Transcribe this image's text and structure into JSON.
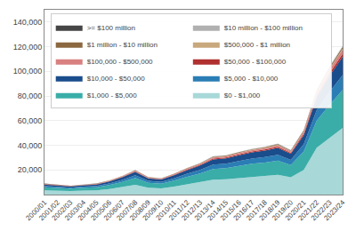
{
  "chart_data": {
    "type": "area",
    "stacked": true,
    "grid": true,
    "legend": "upper left",
    "categories": [
      "2000/01",
      "2001/02",
      "2002/03",
      "2003/04",
      "2004/05",
      "2005/06",
      "2006/07",
      "2007/08",
      "2008/09",
      "2009/10",
      "2010/11",
      "2011/12",
      "2012/13",
      "2013/14",
      "2014/15",
      "2015/16",
      "2016/17",
      "2017/18",
      "2018/19",
      "2019/20",
      "2020/21",
      "2021/22",
      "2022/23",
      "2023/24"
    ],
    "series": [
      {
        "name": "$0 - $1,000",
        "color": "#a8d8d8",
        "values": [
          3500,
          3000,
          2800,
          3200,
          3500,
          4500,
          6000,
          8000,
          5500,
          5000,
          6500,
          8500,
          10000,
          12000,
          12500,
          13500,
          14500,
          15000,
          16000,
          14000,
          20000,
          38000,
          46000,
          54000
        ]
      },
      {
        "name": "$1,000 - $5,000",
        "color": "#3aada8",
        "values": [
          2500,
          2200,
          2000,
          2300,
          2500,
          3200,
          4200,
          5500,
          4000,
          3800,
          4800,
          6000,
          7200,
          8800,
          9000,
          9800,
          10500,
          11000,
          11500,
          10000,
          15000,
          22000,
          27000,
          31000
        ]
      },
      {
        "name": "$5,000 - $10,000",
        "color": "#2a7db5",
        "values": [
          1000,
          900,
          850,
          950,
          1000,
          1300,
          1700,
          2200,
          1600,
          1500,
          1900,
          2400,
          2900,
          3500,
          3600,
          3900,
          4200,
          4400,
          4700,
          4100,
          6000,
          8500,
          10500,
          12000
        ]
      },
      {
        "name": "$10,000 - $50,000",
        "color": "#1a4d8c",
        "values": [
          1200,
          1100,
          1000,
          1100,
          1200,
          1600,
          2100,
          2700,
          2000,
          1900,
          2400,
          3000,
          3500,
          4200,
          4300,
          4700,
          5000,
          5300,
          5700,
          5000,
          7200,
          10500,
          13000,
          15000
        ]
      },
      {
        "name": "$50,000 - $100,000",
        "color": "#b03030",
        "values": [
          200,
          180,
          170,
          190,
          200,
          260,
          340,
          430,
          320,
          300,
          380,
          470,
          560,
          660,
          680,
          740,
          790,
          840,
          900,
          790,
          1150,
          1650,
          2050,
          2380
        ]
      },
      {
        "name": "$100,000 - $500,000",
        "color": "#d98080",
        "values": [
          280,
          250,
          240,
          265,
          280,
          360,
          470,
          600,
          450,
          420,
          530,
          660,
          780,
          930,
          950,
          1040,
          1110,
          1180,
          1270,
          1110,
          1610,
          2310,
          2870,
          3330
        ]
      },
      {
        "name": "$500,000 - $1 million",
        "color": "#c8a87c",
        "values": [
          60,
          54,
          51,
          57,
          60,
          77,
          100,
          128,
          96,
          90,
          114,
          141,
          167,
          199,
          203,
          222,
          237,
          252,
          271,
          237,
          344,
          494,
          614,
          712
        ]
      },
      {
        "name": "$1 million - $10 million",
        "color": "#8b6840",
        "values": [
          130,
          117,
          110,
          122,
          130,
          167,
          218,
          278,
          209,
          195,
          247,
          307,
          363,
          433,
          442,
          483,
          516,
          549,
          590,
          516,
          749,
          1074,
          1334,
          1548
        ]
      },
      {
        "name": "$10 million - $100 million",
        "color": "#b0b0b0",
        "values": [
          50,
          45,
          43,
          47,
          50,
          64,
          84,
          107,
          80,
          75,
          95,
          118,
          139,
          166,
          170,
          186,
          198,
          211,
          227,
          198,
          288,
          413,
          513,
          595
        ]
      },
      {
        "name": ">= $100 million",
        "color": "#454545",
        "values": [
          10,
          9,
          9,
          9,
          10,
          13,
          17,
          21,
          16,
          15,
          19,
          23,
          28,
          33,
          34,
          37,
          40,
          42,
          45,
          40,
          58,
          83,
          103,
          120
        ]
      }
    ],
    "ylim": [
      0,
      150000
    ],
    "yticks": [
      {
        "value": 20000,
        "label": "20,000"
      },
      {
        "value": 40000,
        "label": "40,000"
      },
      {
        "value": 60000,
        "label": "60,000"
      },
      {
        "value": 80000,
        "label": "80,000"
      },
      {
        "value": 100000,
        "label": "100,000"
      },
      {
        "value": 120000,
        "label": "120,000"
      },
      {
        "value": 140000,
        "label": "140,000"
      }
    ]
  }
}
